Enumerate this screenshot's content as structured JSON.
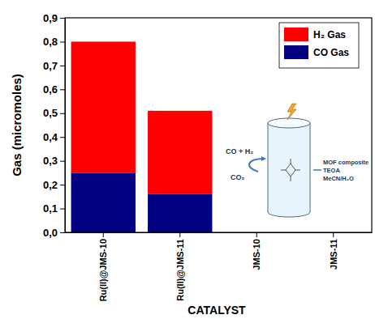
{
  "chart_data": {
    "type": "bar",
    "stacked": true,
    "categories": [
      "Ru(II)@JMS-10",
      "Ru(II)@JMS-11",
      "JMS-10",
      "JMS-11"
    ],
    "series": [
      {
        "name": "H₂ Gas",
        "color": "#ff0000",
        "values": [
          0.55,
          0.35,
          0,
          0
        ]
      },
      {
        "name": "CO Gas",
        "color": "#000080",
        "values": [
          0.25,
          0.16,
          0,
          0
        ]
      }
    ],
    "x_label": "CATALYST",
    "y_label": "Gas (micromoles)",
    "ylim": [
      0,
      0.9
    ],
    "yticks": [
      {
        "value": 0,
        "label": "0,0"
      },
      {
        "value": 0.1,
        "label": "0,1"
      },
      {
        "value": 0.2,
        "label": "0,2"
      },
      {
        "value": 0.3,
        "label": "0,3"
      },
      {
        "value": 0.4,
        "label": "0,4"
      },
      {
        "value": 0.5,
        "label": "0,5"
      },
      {
        "value": 0.6,
        "label": "0,6"
      },
      {
        "value": 0.7,
        "label": "0,7"
      },
      {
        "value": 0.8,
        "label": "0,8"
      },
      {
        "value": 0.9,
        "label": "0,9"
      }
    ],
    "grid": false,
    "legend": "upper right",
    "annotations": [
      "CO + H₂",
      "CO₂",
      "MOF composite",
      "TEOA",
      "MeCN/H₂O"
    ]
  }
}
